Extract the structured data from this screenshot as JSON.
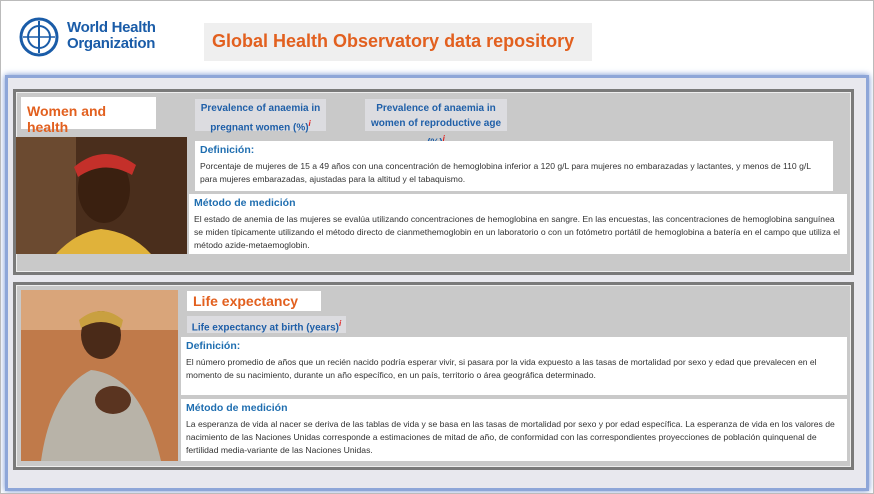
{
  "header": {
    "org_line1": "World Health",
    "org_line2": "Organization",
    "title": "Global Health Observatory data repository"
  },
  "sections": [
    {
      "title": "Women and health",
      "links": [
        {
          "label": "Prevalence of anaemia in pregnant women (%)",
          "info": "i"
        },
        {
          "label": "Prevalence of anaemia in women of reproductive age (%)",
          "info": "i"
        }
      ],
      "definition": {
        "heading": "Definición:",
        "text": "Porcentaje de mujeres de 15 a 49 años con una concentración de hemoglobina inferior a 120 g/L para mujeres no embarazadas y lactantes, y menos de 110 g/L para mujeres embarazadas, ajustadas para la altitud y el tabaquismo."
      },
      "method": {
        "heading": "Método de medición",
        "text": "El estado de anemia de las mujeres se evalúa utilizando concentraciones de hemoglobina en sangre. En las encuestas, las concentraciones de hemoglobina sanguínea se miden típicamente utilizando el método directo de cianmethemoglobin en un laboratorio o con un fotómetro portátil de hemoglobina a batería en el campo que utiliza el método azide-metaemoglobin."
      }
    },
    {
      "title": "Life expectancy",
      "links": [
        {
          "label": "Life expectancy at birth (years)",
          "info": "i"
        }
      ],
      "definition": {
        "heading": "Definición:",
        "text": "El número promedio de años que un recién nacido podría esperar vivir, si pasara por la vida expuesto a las tasas de mortalidad por sexo y edad que prevalecen en el momento de su nacimiento, durante un año específico, en un país, territorio o área geográfica determinado."
      },
      "method": {
        "heading": "Método de medición",
        "text": "La esperanza de vida al nacer se deriva de las tablas de vida y se basa en las tasas de mortalidad por sexo y por edad específica. La esperanza de vida en los valores de nacimiento de las Naciones Unidas corresponde a estimaciones de mitad de año, de conformidad con las correspondientes proyecciones de población quinquenal de fertilidad media-variante de las Naciones Unidas."
      }
    }
  ]
}
